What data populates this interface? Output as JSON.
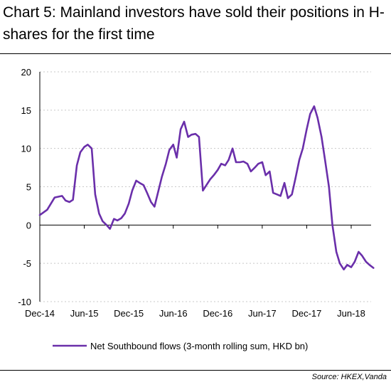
{
  "title": "Chart 5: Mainland investors have sold their positions in H-shares for the first time",
  "source": "Source: HKEX,Vanda",
  "colors": {
    "series": "#6a2faa",
    "grid": "#c8c8c8",
    "axis": "#000000"
  },
  "chart_data": {
    "type": "line",
    "title": "Chart 5: Mainland investors have sold their positions in H-shares for the first time",
    "xlabel": "",
    "ylabel": "",
    "ylim": [
      -10,
      20
    ],
    "yticks": [
      20,
      15,
      10,
      5,
      0,
      -5,
      -10
    ],
    "xlim": [
      "2014-12",
      "2018-09"
    ],
    "xticks": [
      "Dec-14",
      "Jun-15",
      "Dec-15",
      "Jun-16",
      "Dec-16",
      "Jun-17",
      "Dec-17",
      "Jun-18"
    ],
    "grid": "horizontal dashed",
    "legend_position": "bottom",
    "series": [
      {
        "name": "Net Southbound flows (3-month rolling sum, HKD bn)",
        "x": [
          "2014-12-01",
          "2015-01-01",
          "2015-02-01",
          "2015-03-01",
          "2015-03-15",
          "2015-04-01",
          "2015-04-15",
          "2015-05-01",
          "2015-05-15",
          "2015-06-01",
          "2015-06-15",
          "2015-07-01",
          "2015-07-15",
          "2015-08-01",
          "2015-08-15",
          "2015-09-01",
          "2015-09-15",
          "2015-10-01",
          "2015-10-15",
          "2015-11-01",
          "2015-11-15",
          "2015-12-01",
          "2015-12-15",
          "2016-01-01",
          "2016-01-15",
          "2016-02-01",
          "2016-02-15",
          "2016-03-01",
          "2016-03-15",
          "2016-04-01",
          "2016-04-15",
          "2016-05-01",
          "2016-05-15",
          "2016-06-01",
          "2016-06-15",
          "2016-07-01",
          "2016-07-15",
          "2016-08-01",
          "2016-08-15",
          "2016-09-01",
          "2016-09-15",
          "2016-10-01",
          "2016-10-15",
          "2016-11-01",
          "2016-11-15",
          "2016-12-01",
          "2016-12-15",
          "2017-01-01",
          "2017-01-15",
          "2017-02-01",
          "2017-02-15",
          "2017-03-01",
          "2017-03-15",
          "2017-04-01",
          "2017-04-15",
          "2017-05-01",
          "2017-05-15",
          "2017-06-01",
          "2017-06-15",
          "2017-07-01",
          "2017-07-15",
          "2017-08-01",
          "2017-08-15",
          "2017-09-01",
          "2017-09-15",
          "2017-10-01",
          "2017-10-15",
          "2017-11-01",
          "2017-11-15",
          "2017-12-01",
          "2017-12-15",
          "2018-01-01",
          "2018-01-15",
          "2018-02-01",
          "2018-02-15",
          "2018-03-01",
          "2018-03-15",
          "2018-04-01",
          "2018-04-15",
          "2018-05-01",
          "2018-05-15",
          "2018-06-01",
          "2018-06-15",
          "2018-07-01",
          "2018-07-15",
          "2018-08-01",
          "2018-08-15",
          "2018-09-01"
        ],
        "values": [
          1.3,
          2.0,
          3.6,
          3.8,
          3.2,
          3.0,
          3.3,
          7.8,
          9.5,
          10.2,
          10.5,
          10.0,
          4.0,
          1.5,
          0.5,
          0.0,
          -0.5,
          0.8,
          0.6,
          0.9,
          1.5,
          2.8,
          4.5,
          5.8,
          5.5,
          5.2,
          4.2,
          3.0,
          2.4,
          4.5,
          6.3,
          8.0,
          9.8,
          10.5,
          8.8,
          12.5,
          13.5,
          11.5,
          11.8,
          11.9,
          11.5,
          4.5,
          5.2,
          6.0,
          6.5,
          7.2,
          8.0,
          7.8,
          8.5,
          10.0,
          8.2,
          8.2,
          8.3,
          8.0,
          7.0,
          7.5,
          8.0,
          8.2,
          6.5,
          7.0,
          4.2,
          4.0,
          3.8,
          5.5,
          3.5,
          4.0,
          6.0,
          8.5,
          10.0,
          12.5,
          14.5,
          15.5,
          14.0,
          11.5,
          8.5,
          5.0,
          0.0,
          -3.5,
          -5.0,
          -5.8,
          -5.2,
          -5.5,
          -4.8,
          -3.5,
          -4.0,
          -4.8,
          -5.2,
          -5.6
        ]
      }
    ]
  }
}
